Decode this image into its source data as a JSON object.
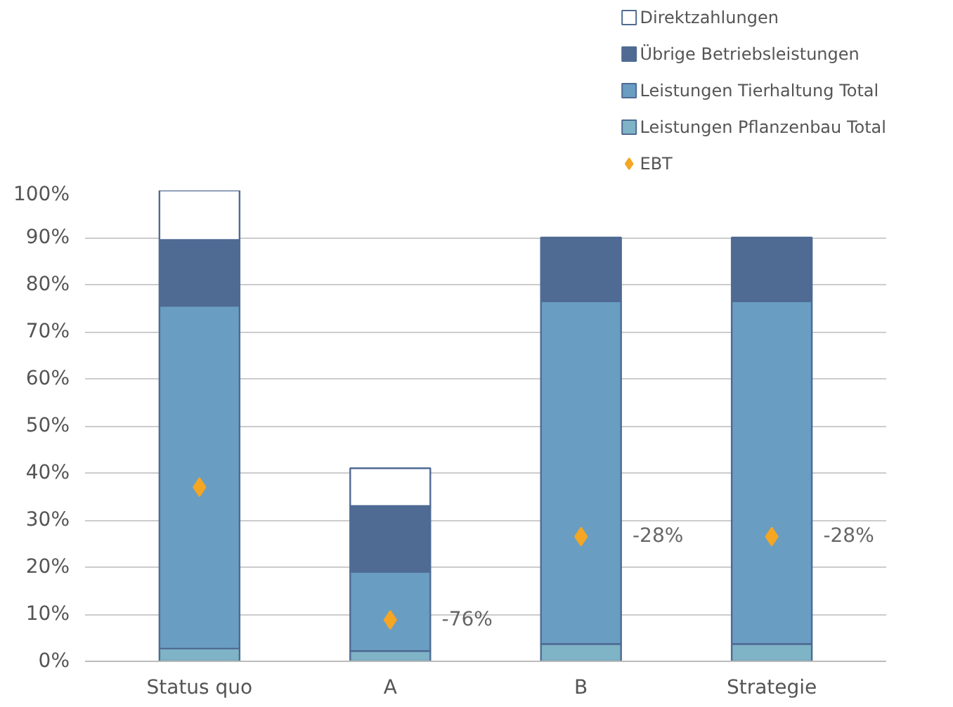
{
  "chart_data": {
    "type": "bar",
    "stacked": true,
    "categories": [
      "Status quo",
      "A",
      "B",
      "Strategie"
    ],
    "series": [
      {
        "name": "Leistungen Pflanzenbau Total",
        "color": "#7fb3c6",
        "values": [
          2.7,
          2.2,
          3.7,
          3.7
        ]
      },
      {
        "name": "Leistungen Tierhaltung Total",
        "color": "#6a9dc2",
        "values": [
          72.8,
          16.8,
          72.8,
          72.8
        ]
      },
      {
        "name": "Übrige Betriebsleistungen",
        "color": "#4f6b93",
        "values": [
          14,
          14,
          13.5,
          13.5
        ]
      },
      {
        "name": "Direktzahlungen",
        "color": "#ffffff",
        "values": [
          10.5,
          8,
          null,
          null
        ]
      },
      {
        "name": "EBT",
        "type": "scatter",
        "marker": "diamond",
        "color": "#f5a623",
        "values": [
          37,
          8.8,
          26.5,
          26.5
        ]
      }
    ],
    "ylim": [
      0,
      100
    ],
    "yticks": [
      {
        "value": 0,
        "label": "0%"
      },
      {
        "value": 10,
        "label": "10%"
      },
      {
        "value": 20,
        "label": "20%"
      },
      {
        "value": 30,
        "label": "30%"
      },
      {
        "value": 40,
        "label": "40%"
      },
      {
        "value": 50,
        "label": "50%"
      },
      {
        "value": 60,
        "label": "60%"
      },
      {
        "value": 70,
        "label": "70%"
      },
      {
        "value": 80,
        "label": "80%"
      },
      {
        "value": 90,
        "label": "90%"
      },
      {
        "value": 100,
        "label": "100%"
      }
    ],
    "grid": "y",
    "legend": "top right",
    "annotations": [
      {
        "text": "-76%",
        "x": "A",
        "y": 8.8
      },
      {
        "text": "-28%",
        "x": "B",
        "y": 26.5
      },
      {
        "text": "-28%",
        "x": "Strategie",
        "y": 26.5
      }
    ]
  }
}
